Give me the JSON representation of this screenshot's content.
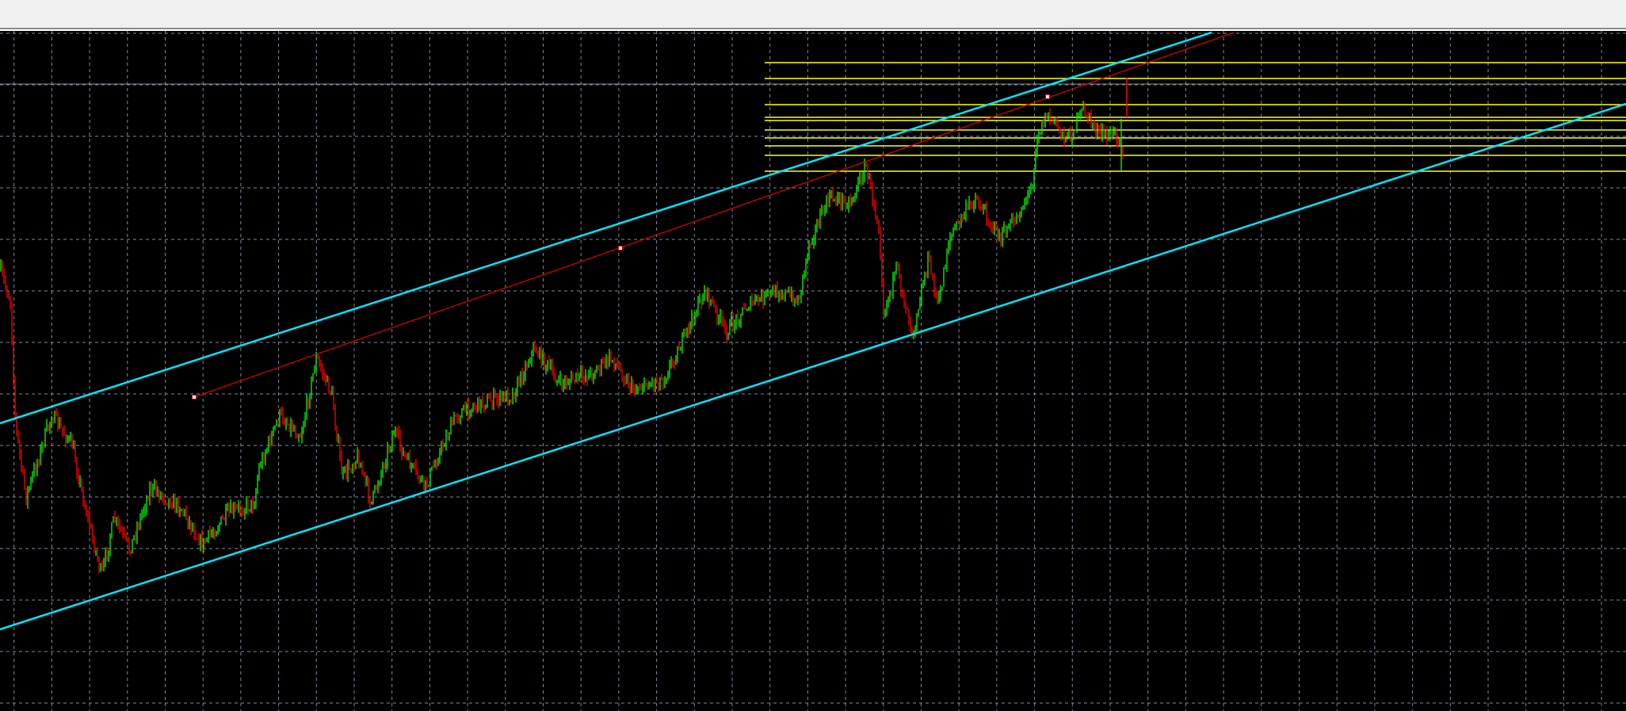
{
  "chart_data": {
    "type": "candlestick",
    "title": "",
    "xlabel": "",
    "ylabel": "",
    "grid": true,
    "legend": "none",
    "colors": {
      "background": "#000000",
      "grid": "#7d8b9c",
      "bull_candle": "#00ff00",
      "bear_candle": "#ff0000",
      "channel_lines": "#00e5ff",
      "trend_line": "#d40000",
      "horizontal_levels": "#ffff00",
      "toolbar": "#f0f0f0"
    }
  }
}
